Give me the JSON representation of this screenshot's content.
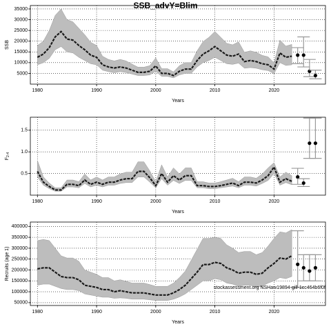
{
  "chart_data": [
    {
      "type": "line",
      "title": "SSB_advY=Blim",
      "xlabel": "Years",
      "ylabel": "SSB",
      "grid": true,
      "color": "#1a1a1a",
      "band_color": "#bdbdbd",
      "xlim": [
        1978.8,
        2028.7
      ],
      "xticks": [
        1980,
        1990,
        2000,
        2010,
        2020
      ],
      "ylim": [
        0,
        36600
      ],
      "yticks": [
        5000,
        10000,
        15000,
        20000,
        25000,
        30000,
        35000
      ],
      "x": [
        1980,
        1981,
        1982,
        1983,
        1984,
        1985,
        1986,
        1987,
        1988,
        1989,
        1990,
        1991,
        1992,
        1993,
        1994,
        1995,
        1996,
        1997,
        1998,
        1999,
        2000,
        2001,
        2002,
        2003,
        2004,
        2005,
        2006,
        2007,
        2008,
        2009,
        2010,
        2011,
        2012,
        2013,
        2014,
        2015,
        2016,
        2017,
        2018,
        2019,
        2020,
        2021,
        2022,
        2023
      ],
      "values": [
        12500,
        14000,
        17000,
        22000,
        24500,
        21000,
        20500,
        18000,
        16000,
        13500,
        12500,
        9000,
        8000,
        7500,
        8000,
        7500,
        6500,
        5500,
        5500,
        6000,
        8500,
        5000,
        5000,
        4000,
        6000,
        7000,
        7000,
        11000,
        14000,
        15500,
        17500,
        15500,
        13500,
        13000,
        14000,
        10500,
        11000,
        10500,
        9500,
        9000,
        7000,
        14500,
        12500,
        13000
      ],
      "lower": [
        9000,
        10000,
        12000,
        16000,
        17500,
        15000,
        14500,
        12500,
        11000,
        9500,
        9000,
        6500,
        5800,
        5300,
        5800,
        5400,
        4700,
        4000,
        4000,
        4300,
        6000,
        3600,
        3600,
        2900,
        4300,
        5000,
        5000,
        8000,
        10000,
        11000,
        12500,
        11000,
        9500,
        9200,
        9800,
        7400,
        7700,
        7400,
        6700,
        6300,
        4900,
        10000,
        8700,
        9000
      ],
      "upper": [
        18000,
        20000,
        25000,
        32000,
        35000,
        30000,
        29000,
        26000,
        23000,
        19500,
        18000,
        13000,
        11500,
        10800,
        11500,
        10800,
        9300,
        7900,
        7900,
        8600,
        12200,
        7200,
        7200,
        5700,
        8600,
        10000,
        10000,
        15500,
        19800,
        21800,
        24500,
        21800,
        19000,
        18300,
        19700,
        14800,
        15500,
        14800,
        13400,
        12700,
        9900,
        20500,
        17700,
        18500
      ],
      "forecast": {
        "x": [
          2024,
          2025,
          2026,
          2027
        ],
        "values": [
          13500,
          13500,
          6000,
          4000
        ],
        "lower": [
          9500,
          8000,
          3500,
          2500
        ],
        "upper": [
          17000,
          22000,
          11500,
          6500
        ]
      }
    },
    {
      "type": "line",
      "xlabel": "Years",
      "ylabel": "F",
      "ylabel_sub": "2-4",
      "grid": true,
      "color": "#1a1a1a",
      "band_color": "#bdbdbd",
      "xlim": [
        1978.8,
        2028.7
      ],
      "xticks": [
        1980,
        1990,
        2000,
        2010,
        2020
      ],
      "ylim": [
        0,
        1.8
      ],
      "yticks": [
        0.5,
        {
          "value": 1,
          "label": "1.0"
        },
        1.5
      ],
      "x": [
        1980,
        1981,
        1982,
        1983,
        1984,
        1985,
        1986,
        1987,
        1988,
        1989,
        1990,
        1991,
        1992,
        1993,
        1994,
        1995,
        1996,
        1997,
        1998,
        1999,
        2000,
        2001,
        2002,
        2003,
        2004,
        2005,
        2006,
        2007,
        2008,
        2009,
        2010,
        2011,
        2012,
        2013,
        2014,
        2015,
        2016,
        2017,
        2018,
        2019,
        2020,
        2021,
        2022,
        2023
      ],
      "values": [
        0.55,
        0.3,
        0.2,
        0.12,
        0.12,
        0.25,
        0.25,
        0.22,
        0.35,
        0.25,
        0.3,
        0.25,
        0.3,
        0.3,
        0.35,
        0.38,
        0.38,
        0.55,
        0.55,
        0.4,
        0.22,
        0.5,
        0.3,
        0.45,
        0.35,
        0.45,
        0.45,
        0.22,
        0.22,
        0.2,
        0.2,
        0.22,
        0.25,
        0.28,
        0.22,
        0.3,
        0.3,
        0.28,
        0.35,
        0.45,
        0.65,
        0.3,
        0.38,
        0.32
      ],
      "lower": [
        0.42,
        0.23,
        0.15,
        0.09,
        0.09,
        0.19,
        0.19,
        0.17,
        0.27,
        0.19,
        0.23,
        0.19,
        0.23,
        0.23,
        0.27,
        0.29,
        0.29,
        0.42,
        0.42,
        0.3,
        0.17,
        0.38,
        0.23,
        0.34,
        0.27,
        0.34,
        0.34,
        0.17,
        0.17,
        0.15,
        0.15,
        0.17,
        0.19,
        0.21,
        0.17,
        0.23,
        0.23,
        0.21,
        0.27,
        0.34,
        0.5,
        0.23,
        0.29,
        0.24
      ],
      "upper": [
        0.8,
        0.42,
        0.28,
        0.17,
        0.17,
        0.35,
        0.35,
        0.31,
        0.49,
        0.35,
        0.42,
        0.35,
        0.42,
        0.42,
        0.49,
        0.53,
        0.53,
        0.77,
        0.77,
        0.56,
        0.31,
        0.7,
        0.42,
        0.63,
        0.49,
        0.63,
        0.63,
        0.31,
        0.31,
        0.28,
        0.28,
        0.31,
        0.35,
        0.39,
        0.31,
        0.42,
        0.42,
        0.39,
        0.49,
        0.63,
        0.75,
        0.42,
        0.53,
        0.45
      ],
      "forecast": {
        "x": [
          2024,
          2025,
          2026,
          2027
        ],
        "values": [
          0.42,
          0.28,
          1.2,
          1.2
        ],
        "lower": [
          0.25,
          0.2,
          0.85,
          0.85
        ],
        "upper": [
          0.62,
          0.38,
          1.78,
          1.78
        ]
      }
    },
    {
      "type": "line",
      "xlabel": "Years",
      "ylabel": "Recruits (age 1)",
      "annotation": "stockassessment.org NSHaw19894-gill-1cc464b6f0f",
      "grid": true,
      "color": "#1a1a1a",
      "band_color": "#bdbdbd",
      "xlim": [
        1978.8,
        2028.7
      ],
      "xticks": [
        1980,
        1990,
        2000,
        2010,
        2020
      ],
      "ylim": [
        37000,
        420000
      ],
      "yticks": [
        50000,
        100000,
        150000,
        200000,
        250000,
        300000,
        350000,
        400000
      ],
      "x": [
        1980,
        1981,
        1982,
        1983,
        1984,
        1985,
        1986,
        1987,
        1988,
        1989,
        1990,
        1991,
        1992,
        1993,
        1994,
        1995,
        1996,
        1997,
        1998,
        1999,
        2000,
        2001,
        2002,
        2003,
        2004,
        2005,
        2006,
        2007,
        2008,
        2009,
        2010,
        2011,
        2012,
        2013,
        2014,
        2015,
        2016,
        2017,
        2018,
        2019,
        2020,
        2021,
        2022,
        2023
      ],
      "values": [
        205000,
        210000,
        210000,
        190000,
        170000,
        165000,
        165000,
        155000,
        130000,
        125000,
        120000,
        110000,
        110000,
        100000,
        105000,
        100000,
        95000,
        95000,
        95000,
        90000,
        85000,
        85000,
        85000,
        95000,
        110000,
        130000,
        160000,
        190000,
        225000,
        225000,
        235000,
        230000,
        210000,
        200000,
        185000,
        190000,
        190000,
        180000,
        185000,
        210000,
        230000,
        255000,
        250000,
        265000
      ],
      "lower": [
        130000,
        135000,
        135000,
        125000,
        115000,
        110000,
        110000,
        105000,
        90000,
        85000,
        80000,
        75000,
        75000,
        70000,
        72000,
        70000,
        66000,
        66000,
        66000,
        63000,
        60000,
        60000,
        60000,
        66000,
        76000,
        90000,
        110000,
        130000,
        150000,
        150000,
        160000,
        155000,
        140000,
        135000,
        125000,
        130000,
        130000,
        120000,
        125000,
        140000,
        150000,
        165000,
        160000,
        170000
      ],
      "upper": [
        335000,
        340000,
        335000,
        300000,
        265000,
        255000,
        255000,
        240000,
        200000,
        190000,
        180000,
        165000,
        165000,
        150000,
        155000,
        148000,
        140000,
        140000,
        140000,
        133000,
        125000,
        125000,
        125000,
        140000,
        165000,
        195000,
        245000,
        295000,
        345000,
        345000,
        350000,
        345000,
        315000,
        300000,
        280000,
        285000,
        285000,
        270000,
        280000,
        310000,
        345000,
        375000,
        370000,
        385000
      ],
      "forecast": {
        "x": [
          2024,
          2025,
          2026,
          2027
        ],
        "values": [
          226000,
          210000,
          195000,
          210000
        ],
        "lower": [
          120000,
          150000,
          150000,
          150000
        ],
        "upper": [
          380000,
          270000,
          270000,
          270000
        ]
      }
    }
  ]
}
